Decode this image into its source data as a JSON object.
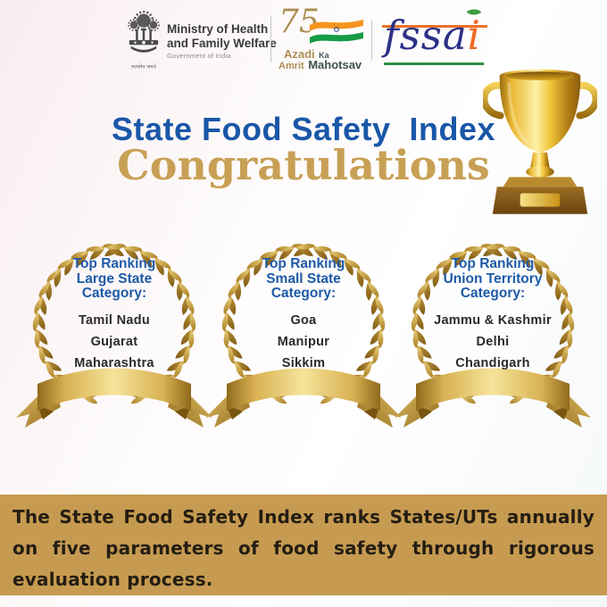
{
  "header": {
    "ministry": {
      "line1": "Ministry of Health",
      "line2": "and Family Welfare",
      "subline": "Government of India",
      "motto": "सत्यमेव जयते"
    },
    "azadi": {
      "number": "75",
      "word_azadi": "Azadi",
      "word_ka": "Ka",
      "word_amrit": "Amrit",
      "word_mahotsav": "Mahotsav"
    },
    "fssai": {
      "prefix": "fssa",
      "i_letter": "i"
    }
  },
  "title": {
    "line1": "State Food Safety  Index",
    "line2": "Congratulations"
  },
  "categories": [
    {
      "heading": [
        "Top Ranking",
        "Large State",
        "Category:"
      ],
      "winners": [
        "Tamil Nadu",
        "Gujarat",
        "Maharashtra"
      ]
    },
    {
      "heading": [
        "Top Ranking",
        "Small State",
        "Category:"
      ],
      "winners": [
        "Goa",
        "Manipur",
        "Sikkim"
      ]
    },
    {
      "heading": [
        "Top Ranking",
        "Union Territory",
        "Category:"
      ],
      "winners": [
        "Jammu & Kashmir",
        "Delhi",
        "Chandigarh"
      ]
    }
  ],
  "footer": {
    "text": "The State Food Safety Index ranks States/UTs annually on five parameters of food safety through rigorous evaluation process."
  },
  "icons": {
    "emblem": "india-national-emblem-icon",
    "flag": "india-flag-icon",
    "leaf": "fssai-leaf-icon",
    "trophy": "trophy-icon",
    "wreath": "laurel-wreath-icon"
  },
  "colors": {
    "title_blue": "#1a57a8",
    "congrats_gold": "#c8a055",
    "heading_blue": "#1d5aa8",
    "banner_gold": "#c69b51",
    "wreath_gold_dark": "#8f6a1c",
    "wreath_gold_light": "#f6e49b",
    "fssai_navy": "#2c3187",
    "fssai_orange": "#ee6b21",
    "fssai_green": "#2f8f47",
    "flag_saffron": "#f7941d",
    "flag_green": "#169b46",
    "emblem_gray": "#4a4a4a"
  }
}
